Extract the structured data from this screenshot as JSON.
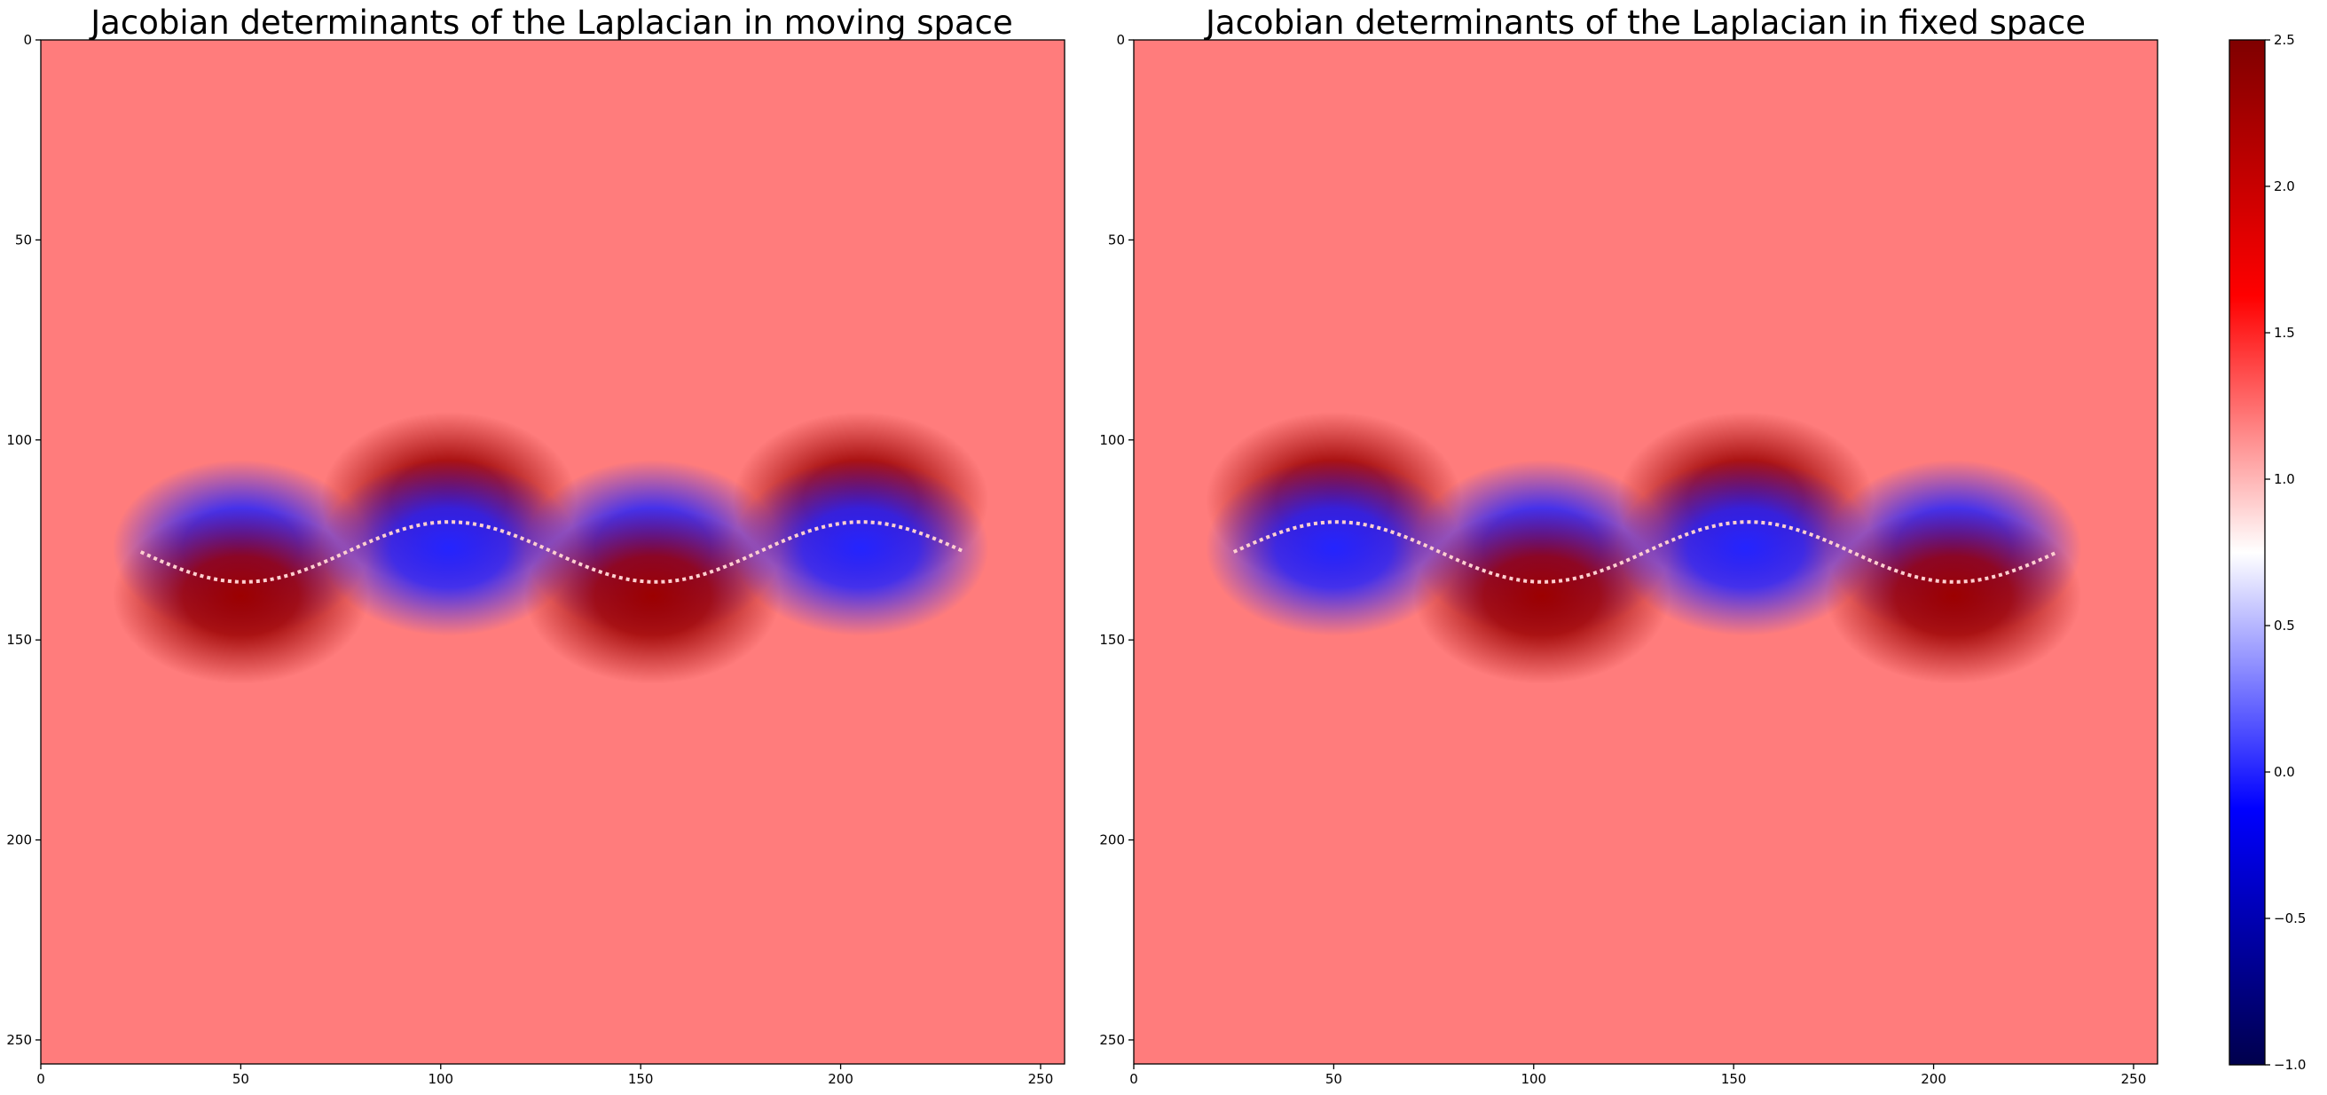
{
  "chart_data": [
    {
      "type": "heatmap",
      "title": "Jacobian determinants of the Laplacian in moving space",
      "xlim": [
        0,
        256
      ],
      "ylim": [
        256,
        0
      ],
      "xticks": [
        0,
        50,
        100,
        150,
        200,
        250
      ],
      "yticks": [
        0,
        50,
        100,
        150,
        200,
        250
      ],
      "xtick_labels": [
        "0",
        "50",
        "100",
        "150",
        "200",
        "250"
      ],
      "ytick_labels": [
        "0",
        "50",
        "100",
        "150",
        "200",
        "250"
      ],
      "grid": false,
      "background_value": 1.2,
      "curve": {
        "center_y": 128,
        "amplitude": 7.5,
        "period": 103,
        "x_start": 25,
        "x_end": 231,
        "phase": "trough-first"
      },
      "extrema": [
        {
          "x": 50,
          "y": 133,
          "kind": "trough",
          "above": 0.0,
          "below": 2.3
        },
        {
          "x": 102,
          "y": 121,
          "kind": "peak",
          "above": 2.3,
          "below": 0.0
        },
        {
          "x": 153,
          "y": 133,
          "kind": "trough",
          "above": 0.0,
          "below": 2.3
        },
        {
          "x": 205,
          "y": 121,
          "kind": "peak",
          "above": 2.3,
          "below": 0.0
        }
      ]
    },
    {
      "type": "heatmap",
      "title": "Jacobian determinants of the Laplacian in fixed space",
      "xlim": [
        0,
        256
      ],
      "ylim": [
        256,
        0
      ],
      "xticks": [
        0,
        50,
        100,
        150,
        200,
        250
      ],
      "yticks": [
        0,
        50,
        100,
        150,
        200,
        250
      ],
      "xtick_labels": [
        "0",
        "50",
        "100",
        "150",
        "200",
        "250"
      ],
      "ytick_labels": [
        "0",
        "50",
        "100",
        "150",
        "200",
        "250"
      ],
      "grid": false,
      "background_value": 1.2,
      "curve": {
        "center_y": 128,
        "amplitude": 7.5,
        "period": 103,
        "x_start": 25,
        "x_end": 231,
        "phase": "peak-first"
      },
      "extrema": [
        {
          "x": 50,
          "y": 121,
          "kind": "peak",
          "above": 2.3,
          "below": 0.0
        },
        {
          "x": 102,
          "y": 133,
          "kind": "trough",
          "above": 0.0,
          "below": 2.3
        },
        {
          "x": 153,
          "y": 121,
          "kind": "peak",
          "above": 2.3,
          "below": 0.0
        },
        {
          "x": 205,
          "y": 133,
          "kind": "trough",
          "above": 0.0,
          "below": 2.3
        }
      ]
    }
  ],
  "colorbar": {
    "colormap": "seismic",
    "vmin": -1.0,
    "vmax": 2.5,
    "ticks": [
      -1.0,
      -0.5,
      0.0,
      0.5,
      1.0,
      1.5,
      2.0,
      2.5
    ],
    "tick_labels": [
      "−1.0",
      "−0.5",
      "0.0",
      "0.5",
      "1.0",
      "1.5",
      "2.0",
      "2.5"
    ],
    "color_stops": [
      "#00004c",
      "#0000ff",
      "#ffffff",
      "#ff0000",
      "#7f0000"
    ]
  }
}
